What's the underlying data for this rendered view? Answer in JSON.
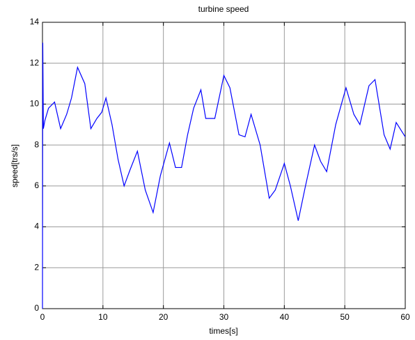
{
  "chart_data": {
    "type": "line",
    "title": "turbine speed",
    "xlabel": "times[s]",
    "ylabel": "speed[trs/s]",
    "x": [
      0,
      0.05,
      0.15,
      0.4,
      1,
      2,
      3,
      4,
      4.8,
      5.8,
      7,
      8,
      9,
      9.8,
      10.5,
      11.5,
      12.5,
      13.5,
      14.5,
      15.7,
      17,
      18.3,
      19.5,
      21,
      22,
      23,
      24,
      25,
      26.2,
      27,
      28.5,
      30,
      31,
      32.5,
      33.5,
      34.5,
      36,
      37.5,
      38.5,
      40,
      41,
      42.3,
      43.5,
      45,
      46,
      47,
      48.5,
      50.2,
      51.5,
      52.5,
      54,
      55,
      56.5,
      57.5,
      58.5,
      60
    ],
    "series": [
      {
        "name": "speed",
        "color": "#0000ff",
        "values": [
          0,
          13,
          8.8,
          9.2,
          9.8,
          10.1,
          8.8,
          9.5,
          10.3,
          11.8,
          11,
          8.8,
          9.3,
          9.6,
          10.3,
          9,
          7.3,
          6,
          6.8,
          7.7,
          5.8,
          4.7,
          6.5,
          8.1,
          6.9,
          6.9,
          8.5,
          9.8,
          10.7,
          9.3,
          9.3,
          11.4,
          10.8,
          8.5,
          8.4,
          9.5,
          8,
          5.4,
          5.8,
          7.1,
          6,
          4.3,
          6,
          8,
          7.2,
          6.7,
          9,
          10.8,
          9.5,
          9,
          10.9,
          11.2,
          8.5,
          7.8,
          9.1,
          8.4
        ]
      }
    ],
    "xlim": [
      0,
      60
    ],
    "xticks": [
      0,
      10,
      20,
      30,
      40,
      50,
      60
    ],
    "ylim": [
      0,
      14
    ],
    "yticks": [
      0,
      2,
      4,
      6,
      8,
      10,
      12,
      14
    ],
    "grid": true
  }
}
